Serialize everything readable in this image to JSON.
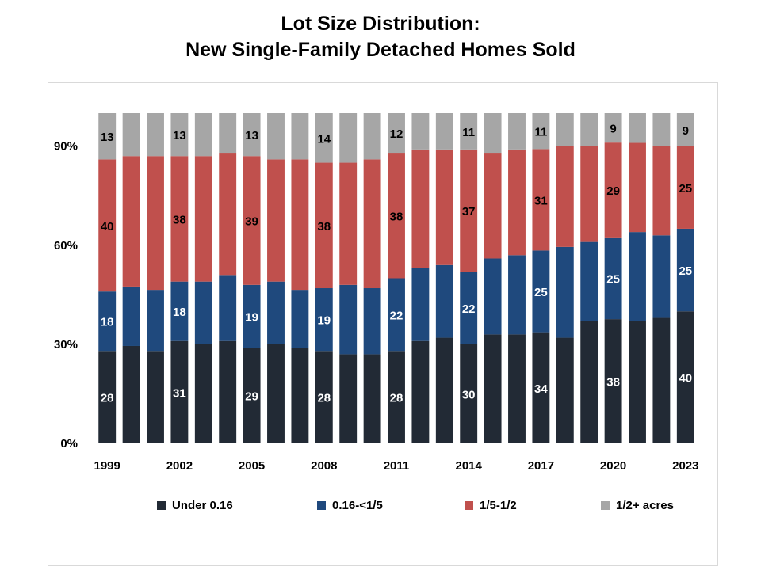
{
  "title_line1": "Lot Size Distribution:",
  "title_line2": "New Single-Family Detached Homes Sold",
  "chart_data": {
    "type": "bar",
    "stacked": true,
    "categories": [
      "1999",
      "2000",
      "2001",
      "2002",
      "2003",
      "2004",
      "2005",
      "2006",
      "2007",
      "2008",
      "2009",
      "2010",
      "2011",
      "2012",
      "2013",
      "2014",
      "2015",
      "2016",
      "2017",
      "2018",
      "2019",
      "2020",
      "2021",
      "2022",
      "2023"
    ],
    "x_tick_labels": [
      "1999",
      "2002",
      "2005",
      "2008",
      "2011",
      "2014",
      "2017",
      "2020",
      "2023"
    ],
    "y_tick_labels": [
      "0%",
      "30%",
      "60%",
      "90%"
    ],
    "y_ticks": [
      0,
      30,
      60,
      90
    ],
    "ylim": [
      0,
      100
    ],
    "grid": false,
    "legend_position": "bottom",
    "series": [
      {
        "name": "Under 0.16",
        "color": "#222a35",
        "label_color": "#ffffff",
        "values": [
          28,
          29.5,
          28,
          31,
          30,
          31,
          29,
          30,
          29,
          28,
          27,
          27,
          28,
          31,
          32,
          30,
          33,
          33,
          34,
          32,
          37,
          38,
          37,
          38,
          40
        ]
      },
      {
        "name": "0.16-<1/5",
        "color": "#1f497d",
        "label_color": "#ffffff",
        "values": [
          18,
          18,
          18.5,
          18,
          19,
          20,
          19,
          19,
          17.5,
          19,
          21,
          20,
          22,
          22,
          22,
          22,
          23,
          24,
          25,
          27.5,
          24,
          25,
          27,
          25,
          25
        ]
      },
      {
        "name": "1/5-1/2",
        "color": "#c0504d",
        "label_color": "#000000",
        "values": [
          40,
          39.5,
          40.5,
          38,
          38,
          37,
          39,
          37,
          39.5,
          38,
          37,
          39,
          38,
          36,
          35,
          37,
          32,
          32,
          31,
          30.5,
          29,
          29,
          27,
          27,
          25
        ]
      },
      {
        "name": "1/2+ acres",
        "color": "#a6a6a6",
        "label_color": "#000000",
        "values": [
          13,
          13,
          13,
          13,
          13,
          12,
          13,
          14,
          14,
          14,
          15,
          14,
          12,
          11,
          11,
          11,
          12,
          11,
          11,
          10,
          10,
          9,
          9,
          10,
          9
        ]
      }
    ],
    "data_labels": [
      {
        "category": "1999",
        "values": [
          "28",
          "18",
          "40",
          "13"
        ]
      },
      {
        "category": "2002",
        "values": [
          "31",
          "18",
          "38",
          "13"
        ]
      },
      {
        "category": "2005",
        "values": [
          "29",
          "19",
          "39",
          "13"
        ]
      },
      {
        "category": "2008",
        "values": [
          "28",
          "19",
          "38",
          "14"
        ]
      },
      {
        "category": "2011",
        "values": [
          "28",
          "22",
          "38",
          "12"
        ]
      },
      {
        "category": "2014",
        "values": [
          "30",
          "22",
          "37",
          "11"
        ]
      },
      {
        "category": "2017",
        "values": [
          "34",
          "25",
          "31",
          "11"
        ]
      },
      {
        "category": "2020",
        "values": [
          "38",
          "25",
          "29",
          "9"
        ]
      },
      {
        "category": "2023",
        "values": [
          "40",
          "25",
          "25",
          "9"
        ]
      }
    ]
  }
}
